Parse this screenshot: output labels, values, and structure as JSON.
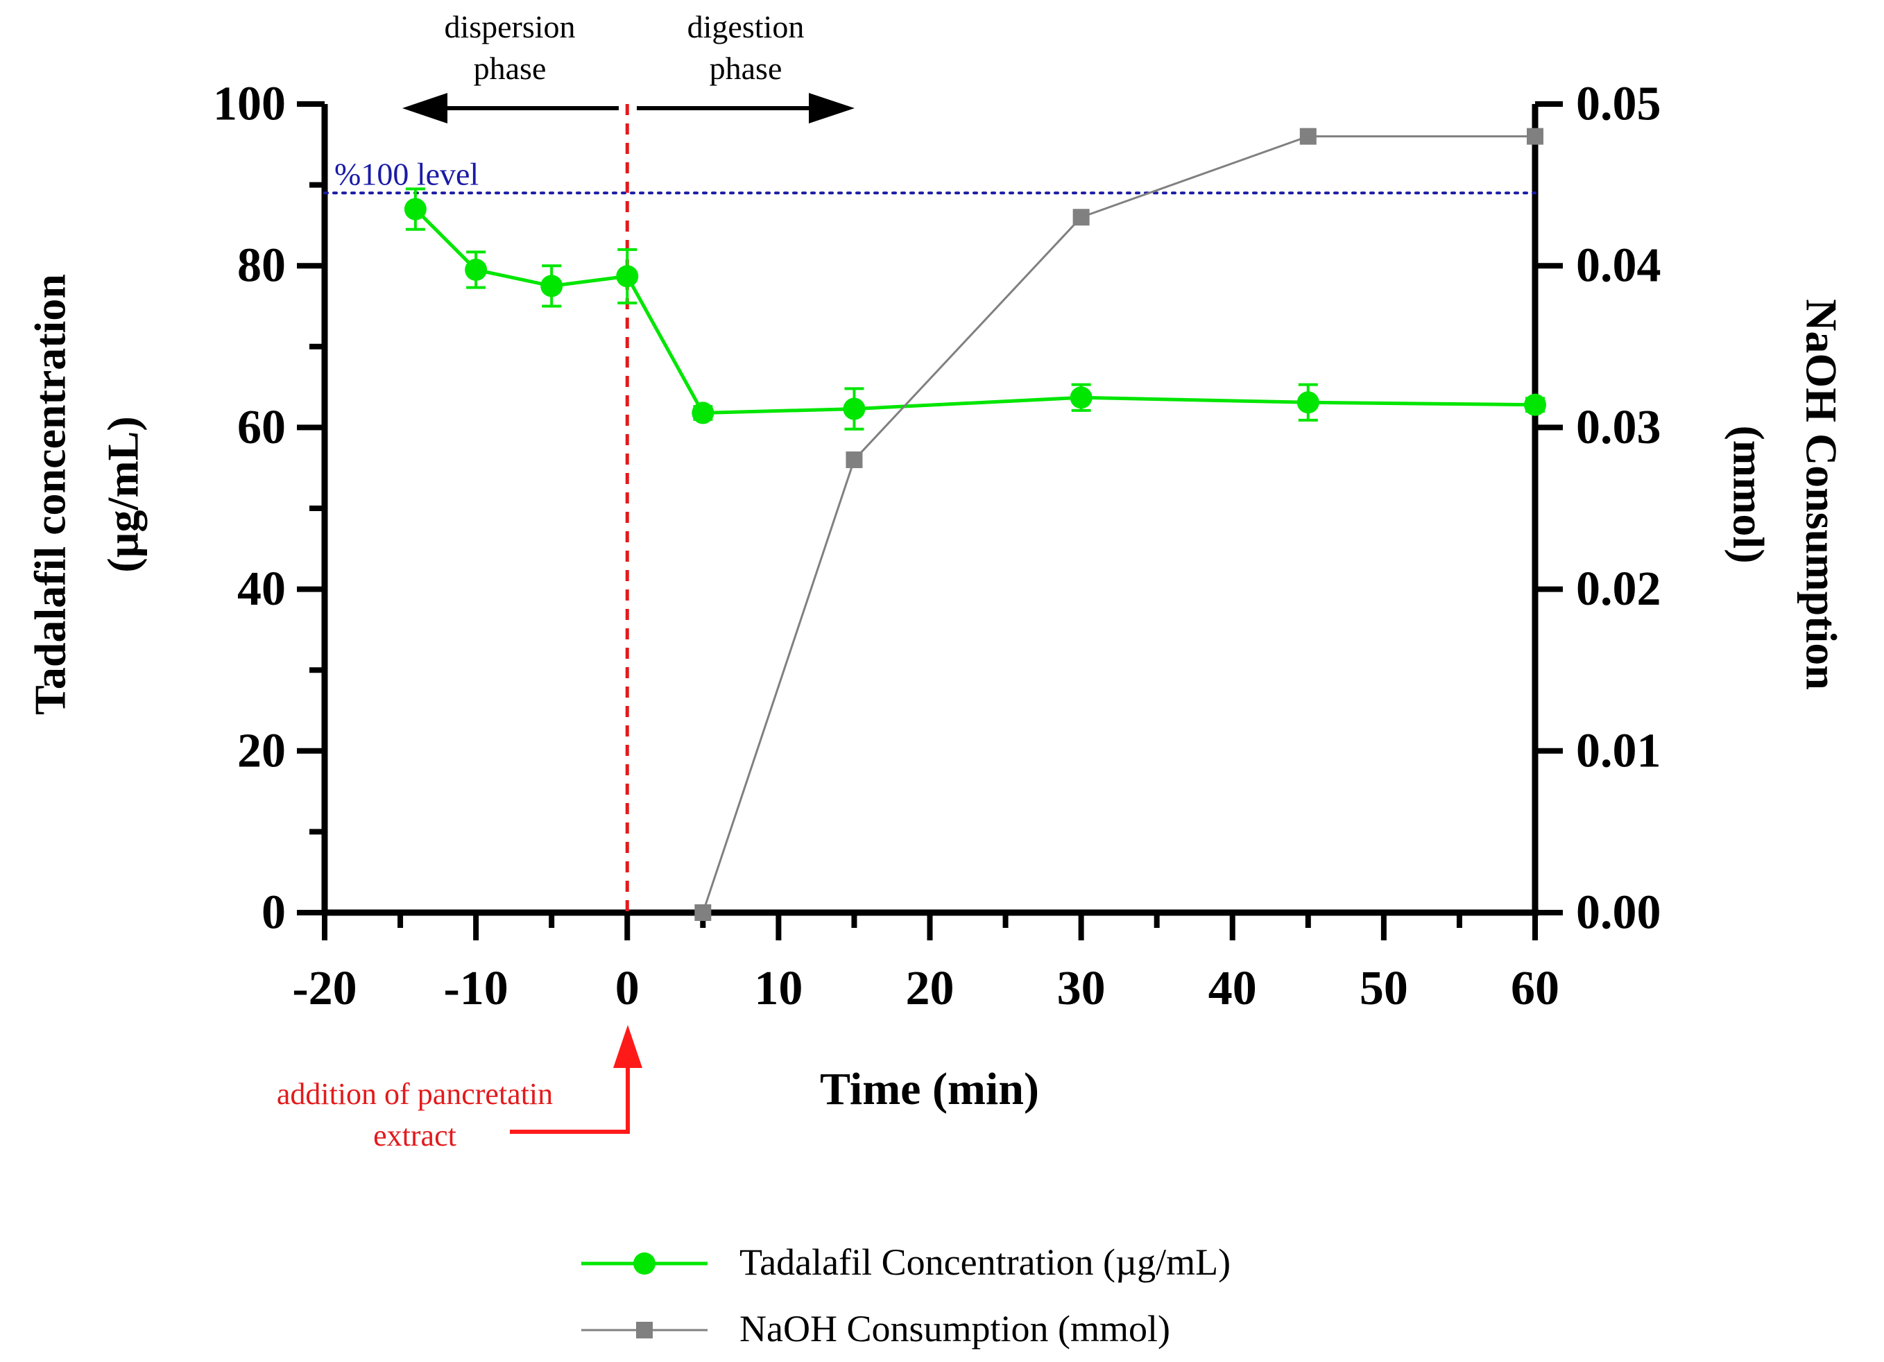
{
  "chart_data": {
    "type": "line",
    "xlabel": "Time (min)",
    "ylabel_left_line1": "Tadalafil concentration",
    "ylabel_left_line2": "(µg/mL)",
    "ylabel_right_line1": "NaOH Consumption",
    "ylabel_right_line2": "(mmol)",
    "xlim": [
      -20,
      60
    ],
    "ylim_left": [
      0,
      100
    ],
    "ylim_right": [
      0,
      0.05
    ],
    "xticks": [
      -20,
      -10,
      0,
      10,
      20,
      30,
      40,
      50,
      60
    ],
    "xtick_labels": [
      "-20",
      "-10",
      "0",
      "10",
      "20",
      "30",
      "40",
      "50",
      "60"
    ],
    "yticks_left": [
      0,
      20,
      40,
      60,
      80,
      100
    ],
    "ytick_labels_left": [
      "0",
      "20",
      "40",
      "60",
      "80",
      "100"
    ],
    "yticks_right": [
      0,
      0.01,
      0.02,
      0.03,
      0.04,
      0.05
    ],
    "ytick_labels_right": [
      "0.00",
      "0.01",
      "0.02",
      "0.03",
      "0.04",
      "0.05"
    ],
    "series": [
      {
        "name": "Tadalafil Concentration (µg/mL)",
        "axis": "left",
        "color": "#00e600",
        "marker": "circle",
        "x": [
          -14,
          -10,
          -5,
          0,
          5,
          15,
          30,
          45,
          60
        ],
        "values": [
          87.0,
          79.5,
          77.5,
          78.7,
          61.8,
          62.3,
          63.7,
          63.1,
          62.8
        ],
        "errors": [
          2.5,
          2.2,
          2.5,
          3.3,
          0.8,
          2.5,
          1.6,
          2.2,
          0.8
        ]
      },
      {
        "name": "NaOH Consumption (mmol)",
        "axis": "right",
        "color": "#808080",
        "marker": "square",
        "x": [
          5,
          15,
          30,
          45,
          60
        ],
        "values": [
          0.0,
          0.028,
          0.043,
          0.048,
          0.048
        ]
      }
    ],
    "reference_line": {
      "label": "%100 level",
      "y": 89,
      "color": "#1a1aa6"
    },
    "event_line": {
      "x": 0,
      "color": "#e31a1c"
    },
    "annotations": {
      "dispersion_line1": "dispersion",
      "dispersion_line2": "phase",
      "digestion_line1": "digestion",
      "digestion_line2": "phase",
      "addition_line1": "addition of pancretatin",
      "addition_line2": "extract"
    },
    "legend_position": "bottom-center"
  }
}
